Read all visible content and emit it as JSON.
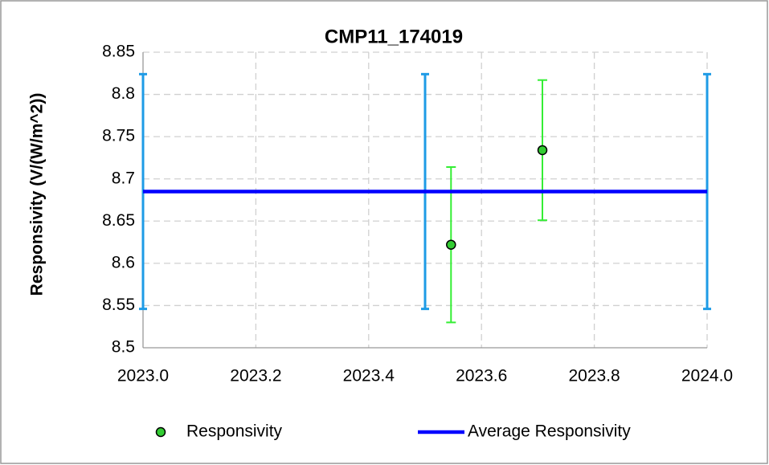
{
  "chart_data": {
    "type": "scatter",
    "title": "CMP11_174019",
    "ylabel": "Responsivity (V/(W/m^2))",
    "xlim": [
      2023.0,
      2024.0
    ],
    "xticks": [
      {
        "value": 2023.0,
        "label": "2023.0"
      },
      {
        "value": 2023.2,
        "label": "2023.2"
      },
      {
        "value": 2023.4,
        "label": "2023.4"
      },
      {
        "value": 2023.6,
        "label": "2023.6"
      },
      {
        "value": 2023.8,
        "label": "2023.8"
      },
      {
        "value": 2024.0,
        "label": "2024.0"
      }
    ],
    "ylim": [
      8.5,
      8.85
    ],
    "yticks": [
      8.5,
      8.55,
      8.6,
      8.65,
      8.7,
      8.75,
      8.8,
      8.85
    ],
    "grid": true,
    "legend": "bottom",
    "series": [
      {
        "name": "Responsivity",
        "style": "markers",
        "color": "#33cc33",
        "error_color": "#33ee33",
        "x": [
          2023.546,
          2023.708
        ],
        "values": [
          8.622,
          8.734
        ],
        "errors": [
          0.092,
          0.083
        ]
      },
      {
        "name": "Average Responsivity",
        "style": "line",
        "color": "#0000ff",
        "error_color": "#1e9be6",
        "x": [
          2023.0,
          2023.5,
          2024.0
        ],
        "values": [
          8.685,
          8.685,
          8.685
        ],
        "errors": [
          0.139,
          0.139,
          0.139
        ]
      }
    ]
  }
}
